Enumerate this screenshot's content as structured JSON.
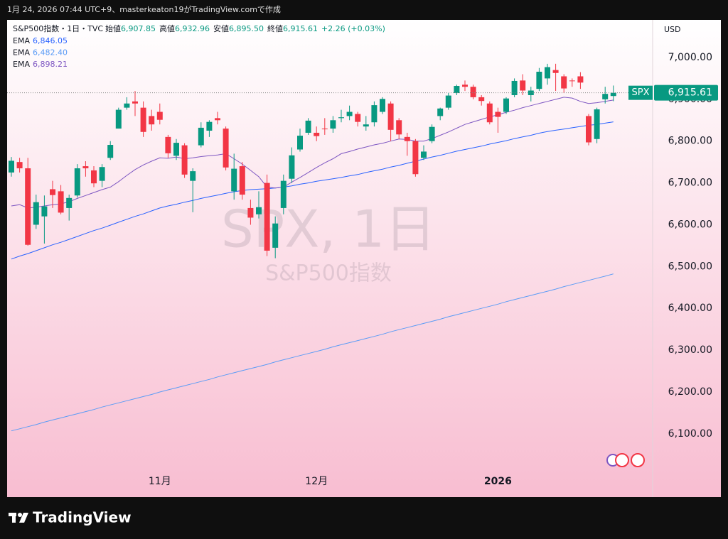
{
  "chart_data": {
    "type": "candlestick",
    "caption": "1月 24, 2026 07:44 UTC+9、masterkeaton19がTradingView.comで作成",
    "title": "S&P500指数・1日・TVC",
    "ohlc_labels": {
      "open": {
        "label": "始値",
        "value": "6,907.85"
      },
      "high": {
        "label": "高値",
        "value": "6,932.96"
      },
      "low": {
        "label": "安値",
        "value": "6,895.50"
      },
      "close": {
        "label": "終値",
        "value": "6,915.61"
      }
    },
    "change": "+2.26 (+0.03%)",
    "watermark": "SPX, 1日",
    "watermark_subtitle": "S&P500指数",
    "symbol": "SPX",
    "last_label": "6,915.61",
    "y_unit": "USD",
    "brand": "TradingView",
    "up_color": "#089981",
    "down_color": "#f23645",
    "categories": [
      null,
      null,
      null,
      null,
      null,
      null,
      null,
      null,
      null,
      null,
      null,
      null,
      null,
      null,
      null,
      null,
      null,
      null,
      "11月",
      null,
      null,
      null,
      null,
      null,
      null,
      null,
      null,
      null,
      null,
      null,
      null,
      null,
      null,
      null,
      null,
      null,
      null,
      "12月",
      null,
      null,
      null,
      null,
      null,
      null,
      null,
      null,
      null,
      null,
      null,
      null,
      null,
      null,
      null,
      null,
      null,
      null,
      null,
      null,
      null,
      "2026",
      null,
      null,
      null,
      null,
      null,
      null,
      null,
      null,
      null,
      null,
      null,
      null,
      null,
      null
    ],
    "open": [
      6725,
      6750,
      6735,
      6600,
      6620,
      6685,
      6680,
      6640,
      6670,
      6740,
      6730,
      6705,
      6760,
      6830,
      6880,
      6895,
      6880,
      6860,
      6870,
      6810,
      6765,
      6790,
      6705,
      6790,
      6825,
      6855,
      6830,
      6680,
      6740,
      6640,
      6625,
      6700,
      6545,
      6640,
      6710,
      6780,
      6820,
      6820,
      6830,
      6830,
      6855,
      6860,
      6865,
      6835,
      6845,
      6870,
      6890,
      6850,
      6810,
      6800,
      6760,
      6800,
      6860,
      6880,
      6915,
      6935,
      6930,
      6905,
      6890,
      6870,
      6870,
      6910,
      6945,
      6910,
      6925,
      6950,
      6970,
      6955,
      6945,
      6955,
      6860,
      6805,
      6900,
      6907.85
    ],
    "high": [
      6762,
      6760,
      6760,
      6672,
      6670,
      6705,
      6695,
      6672,
      6745,
      6752,
      6740,
      6745,
      6800,
      6880,
      6905,
      6920,
      6895,
      6875,
      6890,
      6815,
      6805,
      6795,
      6735,
      6845,
      6850,
      6870,
      6835,
      6770,
      6750,
      6660,
      6680,
      6720,
      6620,
      6720,
      6785,
      6830,
      6855,
      6835,
      6855,
      6860,
      6875,
      6885,
      6870,
      6860,
      6895,
      6905,
      6895,
      6855,
      6820,
      6805,
      6790,
      6840,
      6880,
      6915,
      6935,
      6945,
      6935,
      6910,
      6895,
      6880,
      6905,
      6950,
      6960,
      6930,
      6975,
      6985,
      6985,
      6960,
      6950,
      6965,
      6865,
      6880,
      6930,
      6932.96
    ],
    "low": [
      6715,
      6725,
      6550,
      6590,
      6555,
      6640,
      6625,
      6610,
      6665,
      6715,
      6690,
      6690,
      6755,
      6830,
      6875,
      6860,
      6810,
      6825,
      6840,
      6760,
      6755,
      6712,
      6630,
      6785,
      6810,
      6840,
      6730,
      6660,
      6660,
      6600,
      6615,
      6525,
      6520,
      6625,
      6700,
      6775,
      6815,
      6800,
      6815,
      6820,
      6845,
      6850,
      6835,
      6825,
      6835,
      6865,
      6800,
      6805,
      6765,
      6715,
      6755,
      6795,
      6850,
      6875,
      6910,
      6920,
      6900,
      6885,
      6840,
      6820,
      6865,
      6905,
      6910,
      6895,
      6920,
      6935,
      6920,
      6915,
      6930,
      6925,
      6790,
      6795,
      6890,
      6895.5
    ],
    "close": [
      6753,
      6735,
      6552,
      6654,
      6644,
      6671,
      6629,
      6664,
      6735,
      6735,
      6699,
      6738,
      6791,
      6875,
      6890,
      6890,
      6822,
      6840,
      6851,
      6771,
      6796,
      6720,
      6728,
      6832,
      6846,
      6850,
      6737,
      6734,
      6672,
      6617,
      6642,
      6538,
      6603,
      6705,
      6766,
      6813,
      6849,
      6812,
      6829,
      6850,
      6857,
      6870,
      6846,
      6840,
      6886,
      6901,
      6827,
      6816,
      6800,
      6721,
      6775,
      6834,
      6878,
      6909,
      6932,
      6930,
      6905,
      6896,
      6845,
      6858,
      6902,
      6944,
      6921,
      6921,
      6966,
      6977,
      6963,
      6926,
      6944,
      6940,
      6797,
      6876,
      6913,
      6915.61
    ],
    "series": [
      {
        "name": "EMA",
        "color": "#2962ff",
        "value_label": "6,846.05",
        "values": [
          6518,
          6525,
          6531,
          6538,
          6545,
          6552,
          6558,
          6565,
          6572,
          6579,
          6586,
          6592,
          6599,
          6606,
          6613,
          6620,
          6626,
          6633,
          6640,
          6645,
          6649,
          6654,
          6658,
          6663,
          6667,
          6671,
          6675,
          6679,
          6682,
          6684,
          6685,
          6686,
          6688,
          6690,
          6693,
          6697,
          6700,
          6704,
          6707,
          6710,
          6713,
          6717,
          6720,
          6725,
          6729,
          6733,
          6738,
          6742,
          6747,
          6752,
          6757,
          6762,
          6766,
          6771,
          6776,
          6780,
          6784,
          6788,
          6793,
          6797,
          6801,
          6806,
          6810,
          6814,
          6819,
          6823,
          6826,
          6829,
          6832,
          6835,
          6838,
          6840,
          6843,
          6846.05
        ]
      },
      {
        "name": "EMA",
        "color": "#5b9cf6",
        "value_label": "6,482.40",
        "values": [
          6107,
          6112,
          6117,
          6122,
          6128,
          6133,
          6138,
          6143,
          6148,
          6153,
          6158,
          6164,
          6169,
          6174,
          6179,
          6184,
          6189,
          6194,
          6200,
          6205,
          6210,
          6215,
          6220,
          6225,
          6230,
          6236,
          6241,
          6246,
          6251,
          6256,
          6261,
          6266,
          6272,
          6277,
          6282,
          6287,
          6292,
          6297,
          6302,
          6308,
          6313,
          6318,
          6323,
          6328,
          6333,
          6338,
          6344,
          6349,
          6354,
          6359,
          6364,
          6369,
          6374,
          6380,
          6385,
          6390,
          6395,
          6400,
          6405,
          6410,
          6416,
          6421,
          6426,
          6431,
          6436,
          6441,
          6446,
          6452,
          6457,
          6462,
          6467,
          6472,
          6477,
          6482.4
        ]
      },
      {
        "name": "EMA",
        "color": "#7e57c2",
        "value_label": "6,898.21",
        "values": [
          6645,
          6648,
          6640,
          6642,
          6645,
          6648,
          6650,
          6655,
          6663,
          6670,
          6677,
          6684,
          6690,
          6703,
          6718,
          6732,
          6743,
          6752,
          6760,
          6759,
          6762,
          6758,
          6760,
          6763,
          6765,
          6767,
          6770,
          6758,
          6745,
          6730,
          6715,
          6690,
          6688,
          6690,
          6702,
          6713,
          6725,
          6737,
          6748,
          6758,
          6770,
          6775,
          6781,
          6786,
          6791,
          6795,
          6800,
          6805,
          6804,
          6800,
          6800,
          6806,
          6814,
          6822,
          6831,
          6840,
          6846,
          6852,
          6858,
          6863,
          6869,
          6874,
          6880,
          6885,
          6890,
          6895,
          6900,
          6905,
          6903,
          6895,
          6890,
          6892,
          6895,
          6898.21
        ]
      }
    ],
    "ylim": [
      6008,
      7090
    ],
    "yticks": [
      {
        "value": 6100,
        "label": "6,100.00"
      },
      {
        "value": 6200,
        "label": "6,200.00"
      },
      {
        "value": 6300,
        "label": "6,300.00"
      },
      {
        "value": 6400,
        "label": "6,400.00"
      },
      {
        "value": 6500,
        "label": "6,500.00"
      },
      {
        "value": 6600,
        "label": "6,600.00"
      },
      {
        "value": 6700,
        "label": "6,700.00"
      },
      {
        "value": 6800,
        "label": "6,800.00"
      },
      {
        "value": 6900,
        "label": "6,900.00"
      },
      {
        "value": 7000,
        "label": "7,000.00"
      }
    ],
    "grid": false
  }
}
